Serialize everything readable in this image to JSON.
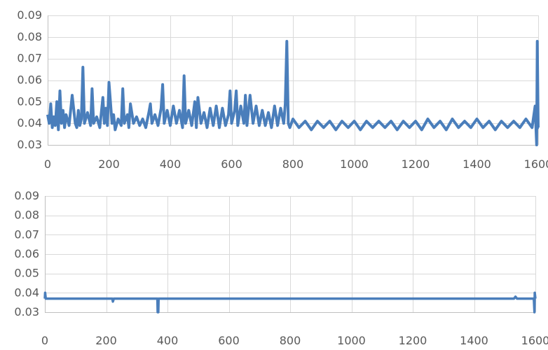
{
  "chart_data": [
    {
      "type": "line",
      "title": "",
      "xlabel": "",
      "ylabel": "",
      "xlim": [
        0,
        1600
      ],
      "ylim": [
        0.03,
        0.09
      ],
      "x_ticks": [
        0,
        200,
        400,
        600,
        800,
        1000,
        1200,
        1400,
        1600
      ],
      "y_ticks": [
        0.03,
        0.04,
        0.05,
        0.06,
        0.07,
        0.08,
        0.09
      ],
      "x_tick_labels": [
        "0",
        "200",
        "400",
        "600",
        "800",
        "1000",
        "1200",
        "1400",
        "1600"
      ],
      "y_tick_labels": [
        "0.03",
        "0.04",
        "0.05",
        "0.06",
        "0.07",
        "0.08",
        "0.09"
      ],
      "grid": true,
      "legend": "none",
      "series": [
        {
          "color": "#4a7ebb",
          "x": [
            0,
            5,
            10,
            15,
            20,
            25,
            30,
            35,
            40,
            45,
            50,
            55,
            60,
            70,
            80,
            90,
            95,
            100,
            105,
            110,
            115,
            120,
            130,
            140,
            145,
            150,
            160,
            170,
            180,
            185,
            190,
            195,
            200,
            210,
            215,
            220,
            230,
            240,
            245,
            250,
            260,
            265,
            270,
            280,
            290,
            300,
            310,
            320,
            330,
            335,
            340,
            350,
            360,
            370,
            375,
            380,
            390,
            400,
            410,
            420,
            430,
            440,
            445,
            450,
            460,
            470,
            480,
            485,
            490,
            500,
            510,
            520,
            530,
            540,
            550,
            560,
            570,
            580,
            590,
            595,
            600,
            610,
            615,
            620,
            630,
            640,
            645,
            650,
            660,
            670,
            680,
            690,
            700,
            710,
            720,
            730,
            740,
            750,
            760,
            770,
            775,
            780,
            785,
            790,
            800,
            820,
            840,
            860,
            880,
            900,
            920,
            940,
            960,
            980,
            1000,
            1020,
            1040,
            1060,
            1080,
            1100,
            1120,
            1140,
            1160,
            1180,
            1200,
            1220,
            1240,
            1260,
            1280,
            1300,
            1320,
            1340,
            1360,
            1380,
            1400,
            1420,
            1440,
            1460,
            1480,
            1500,
            1520,
            1540,
            1560,
            1580,
            1590,
            1595,
            1597,
            1600,
            1602
          ],
          "y": [
            0.044,
            0.04,
            0.049,
            0.038,
            0.043,
            0.039,
            0.05,
            0.037,
            0.055,
            0.04,
            0.046,
            0.038,
            0.044,
            0.039,
            0.053,
            0.04,
            0.038,
            0.046,
            0.039,
            0.042,
            0.066,
            0.04,
            0.045,
            0.039,
            0.056,
            0.04,
            0.043,
            0.038,
            0.052,
            0.04,
            0.047,
            0.039,
            0.059,
            0.04,
            0.044,
            0.037,
            0.042,
            0.039,
            0.056,
            0.04,
            0.044,
            0.038,
            0.049,
            0.04,
            0.043,
            0.039,
            0.042,
            0.038,
            0.045,
            0.049,
            0.04,
            0.044,
            0.039,
            0.047,
            0.058,
            0.04,
            0.046,
            0.039,
            0.048,
            0.04,
            0.046,
            0.038,
            0.062,
            0.04,
            0.046,
            0.039,
            0.05,
            0.038,
            0.052,
            0.04,
            0.045,
            0.038,
            0.047,
            0.039,
            0.048,
            0.038,
            0.047,
            0.039,
            0.044,
            0.055,
            0.04,
            0.046,
            0.055,
            0.039,
            0.048,
            0.04,
            0.053,
            0.039,
            0.053,
            0.04,
            0.048,
            0.039,
            0.046,
            0.039,
            0.045,
            0.038,
            0.048,
            0.039,
            0.047,
            0.04,
            0.049,
            0.078,
            0.04,
            0.038,
            0.042,
            0.038,
            0.041,
            0.037,
            0.041,
            0.038,
            0.041,
            0.037,
            0.041,
            0.038,
            0.041,
            0.037,
            0.041,
            0.038,
            0.041,
            0.038,
            0.041,
            0.037,
            0.041,
            0.038,
            0.041,
            0.037,
            0.042,
            0.038,
            0.041,
            0.037,
            0.042,
            0.038,
            0.041,
            0.038,
            0.042,
            0.038,
            0.041,
            0.037,
            0.041,
            0.038,
            0.041,
            0.038,
            0.042,
            0.038,
            0.048,
            0.03,
            0.078,
            0.038,
            0.038
          ]
        }
      ]
    },
    {
      "type": "line",
      "title": "",
      "xlabel": "",
      "ylabel": "",
      "xlim": [
        0,
        1600
      ],
      "ylim": [
        0.03,
        0.09
      ],
      "x_ticks": [
        0,
        200,
        400,
        600,
        800,
        1000,
        1200,
        1400,
        1600
      ],
      "y_ticks": [
        0.03,
        0.04,
        0.05,
        0.06,
        0.07,
        0.08,
        0.09
      ],
      "x_tick_labels": [
        "0",
        "200",
        "400",
        "600",
        "800",
        "1000",
        "1200",
        "1400",
        "1600"
      ],
      "y_tick_labels": [
        "0.03",
        "0.04",
        "0.05",
        "0.06",
        "0.07",
        "0.08",
        "0.09"
      ],
      "grid": true,
      "legend": "none",
      "series": [
        {
          "color": "#4a7ebb",
          "x": [
            0,
            1,
            3,
            5,
            50,
            100,
            150,
            200,
            220,
            222,
            225,
            300,
            360,
            367,
            368,
            370,
            371,
            372,
            400,
            500,
            600,
            700,
            800,
            900,
            1000,
            1100,
            1200,
            1300,
            1400,
            1500,
            1530,
            1535,
            1540,
            1590,
            1595,
            1597,
            1598,
            1600
          ],
          "y": [
            0.037,
            0.04,
            0.037,
            0.037,
            0.037,
            0.037,
            0.037,
            0.037,
            0.037,
            0.0355,
            0.037,
            0.037,
            0.037,
            0.037,
            0.03,
            0.03,
            0.037,
            0.037,
            0.037,
            0.037,
            0.037,
            0.037,
            0.037,
            0.037,
            0.037,
            0.037,
            0.037,
            0.037,
            0.037,
            0.037,
            0.037,
            0.038,
            0.037,
            0.037,
            0.037,
            0.03,
            0.04,
            0.037
          ]
        }
      ]
    }
  ]
}
